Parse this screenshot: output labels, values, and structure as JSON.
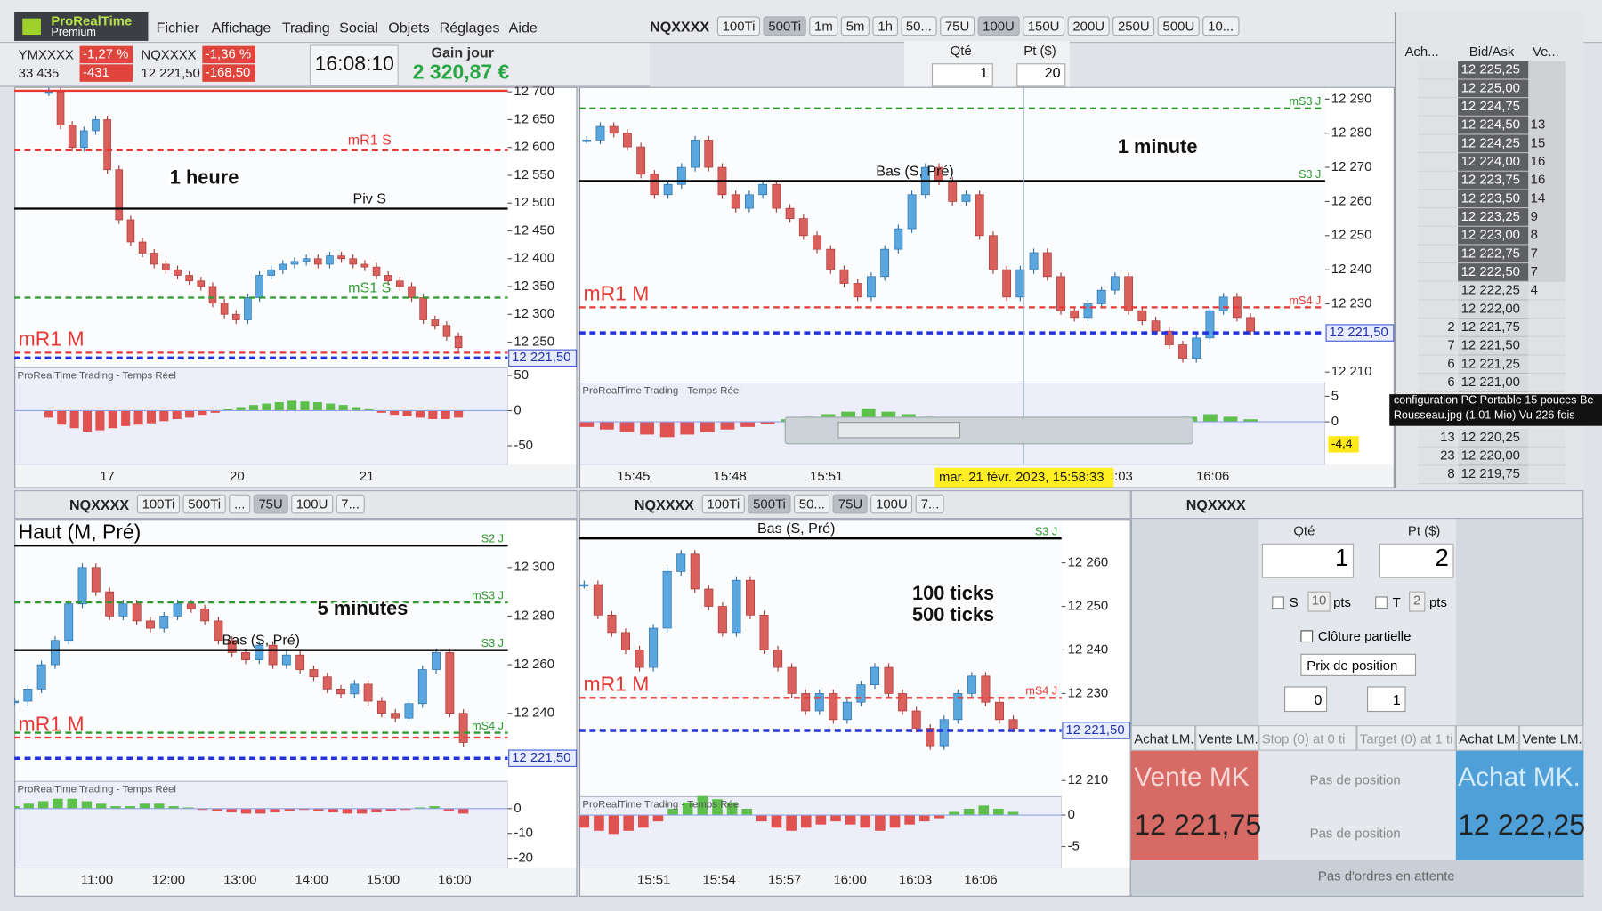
{
  "app": {
    "brand": "ProRealTime",
    "edition": "Premium",
    "menu": [
      "Fichier",
      "Affichage",
      "Trading",
      "Social",
      "Objets",
      "Réglages",
      "Aide"
    ]
  },
  "tickers": [
    {
      "name": "YMXXXX",
      "change": "-1,27 %",
      "price": "33 435",
      "points": "-431"
    },
    {
      "name": "NQXXXX",
      "change": "-1,36 %",
      "price": "12 221,50",
      "points": "-168,50"
    }
  ],
  "clock": "16:08:10",
  "gain": {
    "label": "Gain jour",
    "value": "2 320,87 €"
  },
  "top_toolbar": {
    "symbol": "NQXXXX",
    "buttons": [
      {
        "label": "100Ti"
      },
      {
        "label": "500Ti",
        "active": true
      },
      {
        "label": "1m"
      },
      {
        "label": "5m"
      },
      {
        "label": "1h"
      },
      {
        "label": "50..."
      },
      {
        "label": "75U"
      },
      {
        "label": "100U",
        "active": true
      },
      {
        "label": "150U"
      },
      {
        "label": "200U"
      },
      {
        "label": "250U"
      },
      {
        "label": "500U"
      },
      {
        "label": "10..."
      }
    ]
  },
  "quantity": {
    "qty_label": "Qté",
    "pt_label": "Pt ($)",
    "qty": "1",
    "pt": "20"
  },
  "charts": [
    {
      "label": [
        "1 heure"
      ],
      "source": "ProRealTime Trading - Temps Réel",
      "price_label": "12 221,50",
      "ylim": [
        12204,
        12709
      ],
      "yticks": [
        {
          "value": 12700,
          "label": "12 700"
        },
        {
          "value": 12650,
          "label": "12 650"
        },
        {
          "value": 12600,
          "label": "12 600"
        },
        {
          "value": 12550,
          "label": "12 550"
        },
        {
          "value": 12500,
          "label": "12 500"
        },
        {
          "value": 12450,
          "label": "12 450"
        },
        {
          "value": 12400,
          "label": "12 400"
        },
        {
          "value": 12350,
          "label": "12 350"
        },
        {
          "value": 12300,
          "label": "12 300"
        },
        {
          "value": 12250,
          "label": "12 250"
        }
      ],
      "levels": [
        {
          "value": 12702,
          "color": "#e53935",
          "dash": false
        },
        {
          "name": "mR1 S",
          "value": 12595,
          "color": "#e53935",
          "dash": true
        },
        {
          "name": "Piv S",
          "value": 12490,
          "color": "#000000",
          "dash": false
        },
        {
          "name": "mS1 S",
          "value": 12330,
          "color": "#2e9a2e",
          "dash": true
        },
        {
          "name": "mR1 M",
          "big": true,
          "value": 12231,
          "color": "#e53935",
          "dash": true
        },
        {
          "current": true,
          "value": 12221.5,
          "color": "#2233dd",
          "dash": true
        }
      ],
      "closes": [
        12700,
        12640,
        12600,
        12630,
        12650,
        12560,
        12470,
        12430,
        12410,
        12390,
        12380,
        12370,
        12360,
        12350,
        12320,
        12300,
        12290,
        12330,
        12370,
        12380,
        12390,
        12395,
        12400,
        12390,
        12405,
        12400,
        12390,
        12385,
        12370,
        12360,
        12350,
        12330,
        12290,
        12280,
        12260,
        12240
      ],
      "ind_ylim": [
        -77,
        61
      ],
      "ind_yticks": [
        50,
        0,
        -50
      ],
      "hist": [
        -10,
        -20,
        -25,
        -30,
        -28,
        -25,
        -22,
        -20,
        -18,
        -15,
        -12,
        -10,
        -6,
        -3,
        2,
        5,
        8,
        10,
        12,
        14,
        13,
        12,
        10,
        8,
        5,
        2,
        -3,
        -6,
        -8,
        -10,
        -12,
        -12,
        -10
      ],
      "x_labels": [
        "17",
        "20",
        "21"
      ]
    },
    {
      "label": [
        "1 minute"
      ],
      "source": "ProRealTime Trading - Temps Réel",
      "price_label": "12 221,50",
      "ylim": [
        12206.8,
        12293.6
      ],
      "yticks": [
        {
          "value": 12290,
          "label": "12 290"
        },
        {
          "value": 12280,
          "label": "12 280"
        },
        {
          "value": 12270,
          "label": "12 270"
        },
        {
          "value": 12260,
          "label": "12 260"
        },
        {
          "value": 12250,
          "label": "12 250"
        },
        {
          "value": 12240,
          "label": "12 240"
        },
        {
          "value": 12230,
          "label": "12 230"
        },
        {
          "value": 12210,
          "label": "12 210"
        }
      ],
      "levels": [
        {
          "tag": "mS3 J",
          "value": 12287.3,
          "color": "#2e9a2e",
          "dash": true
        },
        {
          "name": "Bas (S, Pré)",
          "tag": "S3 J",
          "value": 12266,
          "color": "#000000",
          "dash": false
        },
        {
          "name": "mR1 M",
          "big": true,
          "tag": "mS4 J",
          "value": 12229,
          "color": "#e53935",
          "dash": true
        },
        {
          "current": true,
          "value": 12221.5,
          "color": "#2233dd",
          "dash": true
        }
      ],
      "closes": [
        12278,
        12282,
        12280,
        12276,
        12268,
        12262,
        12265,
        12270,
        12278,
        12270,
        12262,
        12258,
        12262,
        12265,
        12258,
        12255,
        12250,
        12246,
        12240,
        12236,
        12232,
        12238,
        12246,
        12252,
        12262,
        12270,
        12266,
        12260,
        12262,
        12250,
        12240,
        12232,
        12240,
        12245,
        12238,
        12228,
        12226,
        12230,
        12234,
        12238,
        12228,
        12225,
        12222,
        12218,
        12214,
        12220,
        12228,
        12232,
        12226,
        12222
      ],
      "ind_ylim": [
        -8.4,
        7.6
      ],
      "ind_yticks": [
        5,
        0
      ],
      "ind_marker": {
        "value": -4.4,
        "label": "-4,4"
      },
      "hist": [
        -1,
        -1.5,
        -2,
        -2.5,
        -3,
        -2.5,
        -2,
        -1.5,
        -1,
        -0.5,
        0.5,
        1,
        1.5,
        2,
        2.5,
        2,
        1.5,
        1,
        -0.5,
        -1,
        -2,
        -2.5,
        -3,
        -3,
        -2.5,
        -2,
        -1.5,
        -1,
        -0.5,
        0.5,
        1,
        1.5,
        1,
        0.5
      ],
      "x_labels": [
        "15:45",
        "15:48",
        "15:51",
        null,
        null,
        "16:03",
        "16:06"
      ]
    },
    {
      "label": [
        "5 minutes"
      ],
      "source": "ProRealTime Trading - Temps Réel",
      "price_label": "12 221,50",
      "ylim": [
        12212,
        12320
      ],
      "yticks": [
        {
          "value": 12300,
          "label": "12 300"
        },
        {
          "value": 12280,
          "label": "12 280"
        },
        {
          "value": 12260,
          "label": "12 260"
        },
        {
          "value": 12240,
          "label": "12 240"
        }
      ],
      "levels": [
        {
          "name": "Haut (M, Pré)",
          "big": true,
          "tag": "S2 J",
          "value": 12309,
          "color": "#000000",
          "dash": false
        },
        {
          "tag": "mS3 J",
          "value": 12285.6,
          "color": "#2e9a2e",
          "dash": true
        },
        {
          "name": "Bas (S, Pré)",
          "tag": "S3 J",
          "value": 12266,
          "color": "#000000",
          "dash": false
        },
        {
          "tag": "mS4 J",
          "value": 12232,
          "color": "#2e9a2e",
          "dash": true
        },
        {
          "name": "mR1 M",
          "big": true,
          "value": 12230,
          "color": "#e53935",
          "dash": true
        },
        {
          "current": true,
          "value": 12221.5,
          "color": "#2233dd",
          "dash": true
        }
      ],
      "closes": [
        12245,
        12250,
        12260,
        12270,
        12285,
        12300,
        12290,
        12280,
        12285,
        12278,
        12275,
        12280,
        12285,
        12283,
        12278,
        12270,
        12265,
        12262,
        12268,
        12260,
        12264,
        12258,
        12255,
        12250,
        12248,
        12252,
        12245,
        12240,
        12238,
        12244,
        12258,
        12265,
        12240,
        12228
      ],
      "ind_ylim": [
        -24,
        11
      ],
      "ind_yticks": [
        0,
        -10,
        -20
      ],
      "hist": [
        1,
        2,
        3,
        4,
        4,
        3,
        2,
        1,
        1,
        2,
        2,
        1,
        0.5,
        -0.5,
        -1,
        -1.5,
        -2,
        -2,
        -1.5,
        -1,
        -0.5,
        -1,
        -1.5,
        -2,
        -2,
        -1.5,
        -1,
        -0.5,
        0.5,
        1,
        -1,
        -2
      ],
      "x_labels": [
        "11:00",
        "12:00",
        "13:00",
        "14:00",
        "15:00",
        "16:00"
      ]
    },
    {
      "label": [
        "100 ticks",
        "500 ticks"
      ],
      "source": "ProRealTime Trading - Temps Réel",
      "price_label": "12 221,50",
      "ylim": [
        12206.3,
        12270.1
      ],
      "yticks": [
        {
          "value": 12260,
          "label": "12 260"
        },
        {
          "value": 12250,
          "label": "12 250"
        },
        {
          "value": 12240,
          "label": "12 240"
        },
        {
          "value": 12230,
          "label": "12 230"
        },
        {
          "value": 12210,
          "label": "12 210"
        }
      ],
      "levels": [
        {
          "name": "Bas (S, Pré)",
          "tag": "S3 J",
          "value": 12265.6,
          "color": "#000000",
          "dash": false
        },
        {
          "name": "mR1 M",
          "big": true,
          "tag": "mS4 J",
          "value": 12229,
          "color": "#e53935",
          "dash": true
        },
        {
          "current": true,
          "value": 12221.5,
          "color": "#2233dd",
          "dash": true
        }
      ],
      "closes": [
        12255,
        12248,
        12244,
        12240,
        12236,
        12245,
        12258,
        12262,
        12254,
        12250,
        12244,
        12256,
        12248,
        12240,
        12236,
        12230,
        12226,
        12230,
        12224,
        12228,
        12232,
        12236,
        12230,
        12226,
        12222,
        12218,
        12224,
        12230,
        12234,
        12228,
        12224,
        12222
      ],
      "ind_ylim": [
        -8.4,
        2.9
      ],
      "ind_yticks": [
        0,
        -5
      ],
      "hist": [
        -2,
        -2.5,
        -3,
        -2.5,
        -2,
        -1,
        1,
        2,
        3,
        2.5,
        2,
        1,
        -1,
        -2,
        -2.5,
        -2,
        -1.5,
        -1,
        -1.5,
        -2,
        -2.5,
        -2,
        -1.5,
        -1,
        -0.5,
        0.5,
        1,
        1.5,
        1,
        0.5
      ],
      "x_labels": [
        "15:51",
        "15:54",
        "15:57",
        "16:00",
        "16:03",
        "16:06"
      ]
    }
  ],
  "crosshair_label": "mar. 21 févr. 2023, 15:58:33",
  "pane_toolbars": [
    {
      "symbol": "NQXXXX",
      "buttons": [
        {
          "label": "100Ti"
        },
        {
          "label": "500Ti"
        },
        {
          "label": "..."
        },
        {
          "label": "75U",
          "active": true
        },
        {
          "label": "100U"
        },
        {
          "label": "7..."
        }
      ]
    },
    {
      "symbol": "NQXXXX",
      "buttons": [
        {
          "label": "100Ti"
        },
        {
          "label": "500Ti",
          "active": true
        },
        {
          "label": "50..."
        },
        {
          "label": "75U",
          "active": true
        },
        {
          "label": "100U"
        },
        {
          "label": "7..."
        }
      ]
    },
    {
      "symbol": "NQXXXX"
    }
  ],
  "order_book": {
    "headers": [
      "Ach...",
      "Bid/Ask",
      "Ve..."
    ],
    "rows": [
      {
        "price": "12 225,25"
      },
      {
        "price": "12 225,00"
      },
      {
        "price": "12 224,75"
      },
      {
        "price": "12 224,50",
        "ve": "13"
      },
      {
        "price": "12 224,25",
        "ve": "15"
      },
      {
        "price": "12 224,00",
        "ve": "16"
      },
      {
        "price": "12 223,75",
        "ve": "16"
      },
      {
        "price": "12 223,50",
        "ve": "14"
      },
      {
        "price": "12 223,25",
        "ve": "9"
      },
      {
        "price": "12 223,00",
        "ve": "8"
      },
      {
        "price": "12 222,75",
        "ve": "7"
      },
      {
        "price": "12 222,50",
        "ve": "7"
      },
      {
        "price": "12 222,25",
        "ve": "4"
      },
      {
        "price": "12 222,00"
      },
      {
        "ach": "2",
        "price": "12 221,75"
      },
      {
        "ach": "7",
        "price": "12 221,50"
      },
      {
        "ach": "6",
        "price": "12 221,25"
      },
      {
        "ach": "6",
        "price": "12 221,00"
      }
    ],
    "rows_lower": [
      {
        "ach": "13",
        "price": "12 220,25"
      },
      {
        "ach": "23",
        "price": "12 220,00"
      },
      {
        "ach": "8",
        "price": "12 219,75"
      }
    ]
  },
  "tooltip": [
    "configuration PC Portable 15 pouces Be",
    "Rousseau.jpg (1.01 Mio) Vu 226 fois"
  ],
  "order_panel": {
    "qty_label": "Qté",
    "pt_label": "Pt ($)",
    "qty": "1",
    "pt": "2",
    "stop": {
      "label": "S",
      "value": "10",
      "unit": "pts"
    },
    "target": {
      "label": "T",
      "value": "2",
      "unit": "pts"
    },
    "partial": "Clôture partielle",
    "mode": "Prix de position",
    "spin": [
      "0",
      "1"
    ],
    "headers": [
      "Achat LM.",
      "Vente LM.",
      "Stop (0) at 0 ti",
      "Target (0) at 1 ti",
      "Achat LM.",
      "Vente LM."
    ],
    "sell": {
      "label": "Vente MK",
      "price": "12 221,75"
    },
    "buy": {
      "label": "Achat MK.",
      "price": "12 222,25"
    },
    "no_position": [
      "Pas de position",
      "Pas de position"
    ],
    "footer": "Pas d'ordres en attente"
  }
}
